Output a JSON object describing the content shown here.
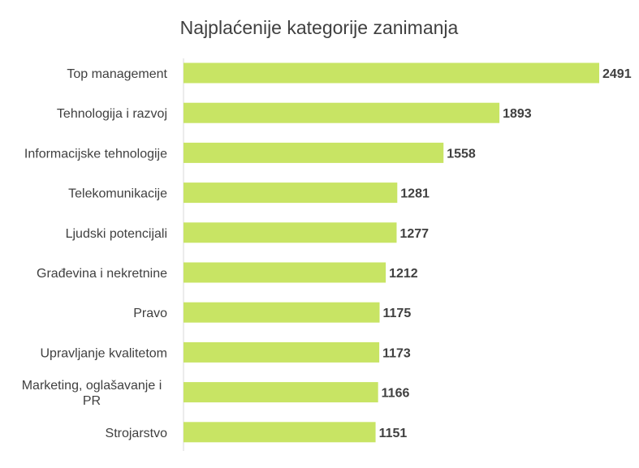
{
  "chart_data": {
    "type": "bar",
    "orientation": "horizontal",
    "title": "Najplaćenije kategorije zanimanja",
    "categories": [
      "Top management",
      "Tehnologija i razvoj",
      "Informacijske tehnologije",
      "Telekomunikacije",
      "Ljudski potencijali",
      "Građevina i nekretnine",
      "Pravo",
      "Upravljanje kvalitetom",
      "Marketing, oglašavanje i PR",
      "Strojarstvo"
    ],
    "values": [
      2491,
      1893,
      1558,
      1281,
      1277,
      1212,
      1175,
      1173,
      1166,
      1151
    ],
    "xlim": [
      0,
      2491
    ],
    "grid": false,
    "legend": "none",
    "data_labels": true,
    "colors": {
      "bar": "#c8e464",
      "axis": "#d9d9d9",
      "text": "#404040"
    }
  }
}
